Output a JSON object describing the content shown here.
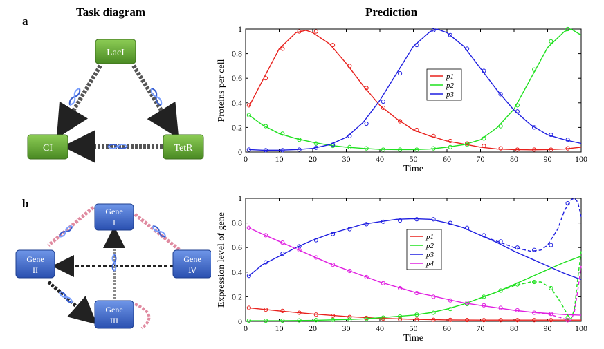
{
  "headings": {
    "left": "Task diagram",
    "right": "Prediction"
  },
  "panel_labels": {
    "a": "a",
    "b": "b"
  },
  "diagram_a": {
    "nodes": {
      "laci": "LacI",
      "ci": "CI",
      "tetr": "TetR"
    }
  },
  "diagram_b": {
    "nodes": {
      "gene1": [
        "Gene",
        "I"
      ],
      "gene2": [
        "Gene",
        "II"
      ],
      "gene3": [
        "Gene",
        "III"
      ],
      "gene4": [
        "Gene",
        "Ⅳ"
      ]
    }
  },
  "colors": {
    "p1": "#e8201c",
    "p2": "#1fe01f",
    "p3": "#1f1fe0",
    "p4": "#e020e0",
    "green_node": "#5f9a33",
    "blue_node": "#3a66c2",
    "arrow": "#333333",
    "pink": "#e08aa0"
  },
  "chart_data": [
    {
      "type": "line",
      "xlabel": "Time",
      "ylabel": "Proteins per cell",
      "xlim": [
        0,
        100
      ],
      "ylim": [
        0,
        1
      ],
      "xticks": [
        0,
        10,
        20,
        30,
        40,
        50,
        60,
        70,
        80,
        90,
        100
      ],
      "yticks": [
        0,
        0.2,
        0.4,
        0.6,
        0.8,
        1
      ],
      "legend_position": "center",
      "series": [
        {
          "name": "p1",
          "color": "#e8201c",
          "style": "solid",
          "x": [
            1,
            5,
            10,
            15,
            18,
            20,
            25,
            30,
            35,
            40,
            45,
            50,
            55,
            60,
            65,
            70,
            75,
            80,
            85,
            90,
            95,
            100
          ],
          "y": [
            0.37,
            0.58,
            0.84,
            0.97,
            0.99,
            0.97,
            0.88,
            0.72,
            0.54,
            0.38,
            0.27,
            0.18,
            0.13,
            0.09,
            0.065,
            0.04,
            0.025,
            0.02,
            0.018,
            0.02,
            0.025,
            0.04
          ]
        },
        {
          "name": "p2",
          "color": "#1fe01f",
          "style": "solid",
          "x": [
            1,
            5,
            10,
            15,
            20,
            25,
            30,
            35,
            40,
            45,
            50,
            55,
            60,
            65,
            70,
            75,
            80,
            85,
            90,
            95,
            97,
            100
          ],
          "y": [
            0.3,
            0.22,
            0.15,
            0.11,
            0.08,
            0.055,
            0.04,
            0.03,
            0.022,
            0.02,
            0.02,
            0.025,
            0.04,
            0.06,
            0.1,
            0.2,
            0.35,
            0.6,
            0.85,
            0.98,
            1.0,
            0.95
          ]
        },
        {
          "name": "p3",
          "color": "#1f1fe0",
          "style": "solid",
          "x": [
            1,
            5,
            10,
            15,
            20,
            25,
            30,
            35,
            40,
            45,
            50,
            55,
            57,
            60,
            65,
            70,
            75,
            80,
            85,
            90,
            95,
            100
          ],
          "y": [
            0.02,
            0.015,
            0.015,
            0.02,
            0.03,
            0.06,
            0.12,
            0.24,
            0.42,
            0.64,
            0.86,
            0.98,
            1.0,
            0.97,
            0.86,
            0.68,
            0.5,
            0.34,
            0.22,
            0.14,
            0.1,
            0.07
          ]
        }
      ],
      "markers": [
        {
          "series": "p1",
          "x": [
            1,
            6,
            11,
            16,
            21,
            26,
            31,
            36,
            41,
            46,
            51,
            56,
            61,
            66,
            71,
            76,
            81,
            86,
            91,
            96
          ],
          "y": [
            0.38,
            0.6,
            0.84,
            0.98,
            0.98,
            0.87,
            0.7,
            0.52,
            0.36,
            0.25,
            0.18,
            0.13,
            0.09,
            0.07,
            0.05,
            0.03,
            0.02,
            0.02,
            0.02,
            0.03
          ]
        },
        {
          "series": "p2",
          "x": [
            1,
            6,
            11,
            16,
            21,
            26,
            31,
            36,
            41,
            46,
            51,
            56,
            61,
            66,
            71,
            76,
            81,
            86,
            91,
            96
          ],
          "y": [
            0.3,
            0.21,
            0.15,
            0.1,
            0.07,
            0.05,
            0.04,
            0.03,
            0.02,
            0.02,
            0.02,
            0.03,
            0.04,
            0.06,
            0.11,
            0.21,
            0.38,
            0.67,
            0.9,
            1.0
          ]
        },
        {
          "series": "p3",
          "x": [
            1,
            6,
            11,
            16,
            21,
            26,
            31,
            36,
            41,
            46,
            51,
            56,
            61,
            66,
            71,
            76,
            81,
            86,
            91,
            96
          ],
          "y": [
            0.02,
            0.015,
            0.015,
            0.02,
            0.035,
            0.06,
            0.13,
            0.23,
            0.41,
            0.64,
            0.87,
            0.99,
            0.95,
            0.84,
            0.66,
            0.47,
            0.33,
            0.2,
            0.14,
            0.1
          ]
        }
      ]
    },
    {
      "type": "line",
      "xlabel": "Time",
      "ylabel": "Expression level of gene",
      "xlim": [
        0,
        100
      ],
      "ylim": [
        0,
        1
      ],
      "xticks": [
        0,
        10,
        20,
        30,
        40,
        50,
        60,
        70,
        80,
        90,
        100
      ],
      "yticks": [
        0,
        0.2,
        0.4,
        0.6,
        0.8,
        1
      ],
      "legend_position": "center",
      "series": [
        {
          "name": "p1",
          "color": "#e8201c",
          "style": "solid",
          "x": [
            1,
            10,
            20,
            30,
            40,
            50,
            60,
            70,
            80,
            90,
            100
          ],
          "y": [
            0.11,
            0.085,
            0.06,
            0.04,
            0.025,
            0.017,
            0.012,
            0.01,
            0.01,
            0.01,
            0.01
          ]
        },
        {
          "name": "p2",
          "color": "#1fe01f",
          "style": "solid",
          "x": [
            1,
            10,
            20,
            30,
            35,
            40,
            50,
            55,
            60,
            65,
            70,
            75,
            80,
            85,
            90,
            95,
            100
          ],
          "y": [
            0.005,
            0.005,
            0.008,
            0.015,
            0.02,
            0.03,
            0.05,
            0.07,
            0.1,
            0.14,
            0.19,
            0.24,
            0.3,
            0.36,
            0.42,
            0.48,
            0.53
          ]
        },
        {
          "name": "p3",
          "color": "#1f1fe0",
          "style": "solid",
          "x": [
            1,
            5,
            10,
            15,
            20,
            25,
            30,
            35,
            40,
            45,
            50,
            55,
            60,
            65,
            70,
            75,
            80,
            85,
            90,
            95,
            100
          ],
          "y": [
            0.37,
            0.46,
            0.53,
            0.6,
            0.66,
            0.71,
            0.75,
            0.79,
            0.81,
            0.83,
            0.835,
            0.83,
            0.8,
            0.76,
            0.7,
            0.64,
            0.57,
            0.51,
            0.45,
            0.39,
            0.34
          ]
        },
        {
          "name": "p4",
          "color": "#e020e0",
          "style": "solid",
          "x": [
            1,
            5,
            10,
            15,
            20,
            25,
            30,
            35,
            40,
            45,
            50,
            55,
            60,
            65,
            70,
            75,
            80,
            85,
            90,
            95,
            100
          ],
          "y": [
            0.76,
            0.71,
            0.65,
            0.59,
            0.53,
            0.47,
            0.42,
            0.37,
            0.32,
            0.28,
            0.24,
            0.21,
            0.18,
            0.15,
            0.13,
            0.11,
            0.09,
            0.075,
            0.065,
            0.055,
            0.05
          ]
        },
        {
          "name": "p3 dashed",
          "color": "#1f1fe0",
          "style": "dashed",
          "x": [
            70,
            75,
            80,
            85,
            88,
            90,
            93,
            95,
            97,
            98,
            99,
            100
          ],
          "y": [
            0.7,
            0.65,
            0.6,
            0.57,
            0.58,
            0.62,
            0.75,
            0.9,
            0.99,
            1.0,
            0.97,
            0.85
          ]
        },
        {
          "name": "p2 dashed",
          "color": "#1fe01f",
          "style": "dashed",
          "x": [
            70,
            75,
            80,
            85,
            88,
            91,
            94,
            96,
            97,
            98,
            99,
            100
          ],
          "y": [
            0.19,
            0.24,
            0.29,
            0.32,
            0.32,
            0.27,
            0.15,
            0.05,
            0.02,
            0.1,
            0.35,
            0.57
          ]
        },
        {
          "name": "p4 dashed",
          "color": "#e020e0",
          "style": "dashed",
          "x": [
            85,
            90,
            94,
            96,
            97,
            98,
            99,
            100
          ],
          "y": [
            0.075,
            0.06,
            0.03,
            0.01,
            0.01,
            0.08,
            0.25,
            0.45
          ]
        }
      ],
      "markers": [
        {
          "series": "p1",
          "x": [
            1,
            6,
            11,
            16,
            21,
            26,
            31,
            36,
            41,
            46,
            51,
            56,
            61,
            66,
            71,
            76,
            81,
            86,
            91,
            96
          ],
          "y": [
            0.11,
            0.095,
            0.085,
            0.07,
            0.055,
            0.045,
            0.035,
            0.028,
            0.022,
            0.018,
            0.015,
            0.013,
            0.012,
            0.011,
            0.01,
            0.01,
            0.01,
            0.01,
            0.01,
            0.01
          ]
        },
        {
          "series": "p2",
          "x": [
            1,
            6,
            11,
            16,
            21,
            26,
            31,
            36,
            41,
            46,
            51,
            56,
            61,
            66,
            71,
            76,
            81,
            86,
            91,
            96
          ],
          "y": [
            0.005,
            0.005,
            0.006,
            0.008,
            0.01,
            0.012,
            0.015,
            0.02,
            0.03,
            0.04,
            0.055,
            0.07,
            0.1,
            0.14,
            0.2,
            0.25,
            0.3,
            0.32,
            0.27,
            0.03
          ]
        },
        {
          "series": "p3",
          "x": [
            1,
            6,
            11,
            16,
            21,
            26,
            31,
            36,
            41,
            46,
            51,
            56,
            61,
            66,
            71,
            76,
            81,
            86,
            91,
            96
          ],
          "y": [
            0.37,
            0.48,
            0.55,
            0.61,
            0.66,
            0.71,
            0.75,
            0.79,
            0.81,
            0.82,
            0.83,
            0.83,
            0.8,
            0.76,
            0.7,
            0.65,
            0.6,
            0.58,
            0.62,
            0.96
          ]
        },
        {
          "series": "p4",
          "x": [
            1,
            6,
            11,
            16,
            21,
            26,
            31,
            36,
            41,
            46,
            51,
            56,
            61,
            66,
            71,
            76,
            81,
            86,
            91,
            96
          ],
          "y": [
            0.76,
            0.7,
            0.64,
            0.58,
            0.52,
            0.46,
            0.41,
            0.36,
            0.31,
            0.27,
            0.23,
            0.2,
            0.17,
            0.15,
            0.13,
            0.11,
            0.09,
            0.07,
            0.06,
            0.01
          ]
        }
      ]
    }
  ]
}
